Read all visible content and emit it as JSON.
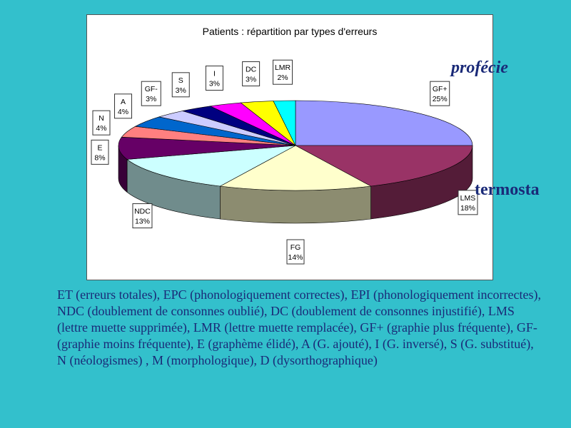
{
  "chart_data": {
    "type": "pie",
    "title": "Patients : répartition par types d'erreurs",
    "slices": [
      {
        "label": "GF+",
        "value": 25,
        "pct_label": "25%",
        "color": "#9999ff"
      },
      {
        "label": "LMS",
        "value": 18,
        "pct_label": "18%",
        "color": "#993366"
      },
      {
        "label": "FG",
        "value": 14,
        "pct_label": "14%",
        "color": "#ffffcc"
      },
      {
        "label": "NDC",
        "value": 13,
        "pct_label": "13%",
        "color": "#ccffff"
      },
      {
        "label": "E",
        "value": 8,
        "pct_label": "8%",
        "color": "#660066"
      },
      {
        "label": "N",
        "value": 4,
        "pct_label": "4%",
        "color": "#ff8080"
      },
      {
        "label": "A",
        "value": 4,
        "pct_label": "4%",
        "color": "#0066cc"
      },
      {
        "label": "GF-",
        "value": 3,
        "pct_label": "3%",
        "color": "#ccccff"
      },
      {
        "label": "S",
        "value": 3,
        "pct_label": "3%",
        "color": "#000080"
      },
      {
        "label": "I",
        "value": 3,
        "pct_label": "3%",
        "color": "#ff00ff"
      },
      {
        "label": "DC",
        "value": 3,
        "pct_label": "3%",
        "color": "#ffff00"
      },
      {
        "label": "LMR",
        "value": 2,
        "pct_label": "2%",
        "color": "#00ffff"
      }
    ],
    "style": "3d-exploded-none"
  },
  "overlay": {
    "word1": "profécie",
    "word2": "termosta"
  },
  "legend": {
    "text": "ET (erreurs totales), EPC (phonologiquement correctes), EPI (phonologiquement incorrectes), NDC (doublement de consonnes oublié), DC (doublement de consonnes injustifié), LMS  (lettre muette supprimée), LMR (lettre muette remplacée), GF+ (graphie plus fréquente), GF- (graphie moins fréquente), E (graphème élidé), A (G. ajouté), I (G. inversé), S (G. substitué), N (néologismes) , M (morphologique), D (dysorthographique)"
  },
  "colors": {
    "background": "#33c0cc",
    "text": "#1a2a78"
  }
}
